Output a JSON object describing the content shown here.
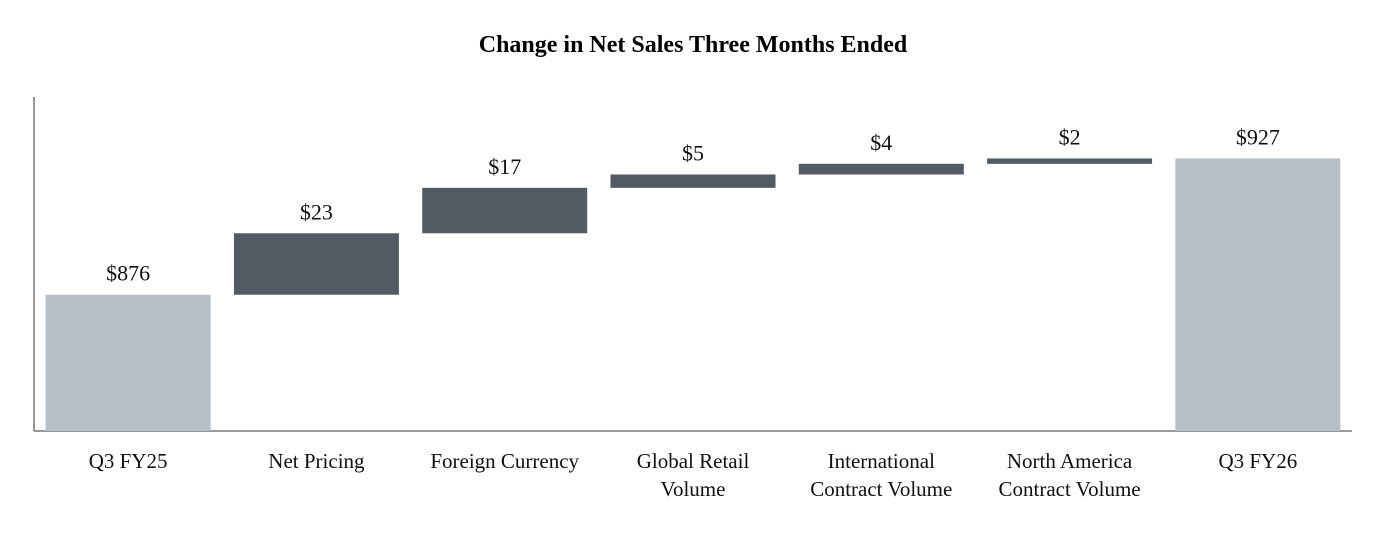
{
  "chart_data": {
    "type": "waterfall",
    "title": "Change in Net Sales Three Months Ended",
    "categories": [
      "Q3 FY25",
      "Net Pricing",
      "Foreign Currency",
      "Global Retail Volume",
      "International Contract Volume",
      "North America Contract Volume",
      "Q3 FY26"
    ],
    "values": [
      876,
      23,
      17,
      5,
      4,
      2,
      927
    ],
    "value_labels": [
      "$876",
      "$23",
      "$17",
      "$5",
      "$4",
      "$2",
      "$927"
    ],
    "total_color": "#b6bfc8",
    "change_color": "#525a63",
    "ylim": [
      825,
      950
    ]
  }
}
